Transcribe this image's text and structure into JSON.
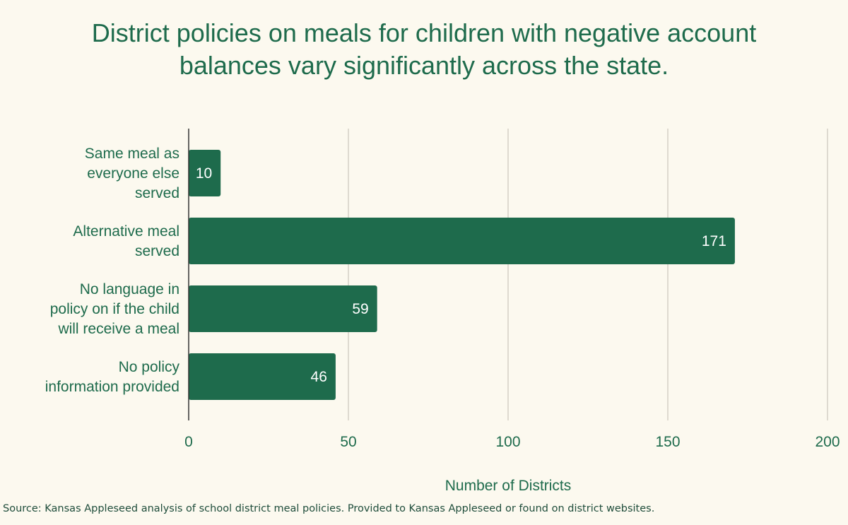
{
  "chart_data": {
    "type": "bar",
    "orientation": "horizontal",
    "title_lines": [
      "District policies on meals for children with negative account",
      "balances vary significantly across the state."
    ],
    "categories": [
      [
        "Same meal as",
        "everyone else",
        "served"
      ],
      [
        "Alternative meal",
        "served"
      ],
      [
        "No language in",
        "policy on if the child",
        "will receive a meal"
      ],
      [
        "No policy",
        "information provided"
      ]
    ],
    "values": [
      10,
      171,
      59,
      46
    ],
    "data_labels": [
      "10",
      "171",
      "59",
      "46"
    ],
    "xlabel": "Number of Districts",
    "xlim": [
      0,
      200
    ],
    "xticks": [
      0,
      50,
      100,
      150,
      200
    ],
    "grid": true,
    "bar_color": "#1e6b4c",
    "text_color": "#1e6b4c",
    "label_color": "#ffffff"
  },
  "source": "Source: Kansas Appleseed analysis of school district meal policies. Provided to Kansas Appleseed or found on district websites."
}
